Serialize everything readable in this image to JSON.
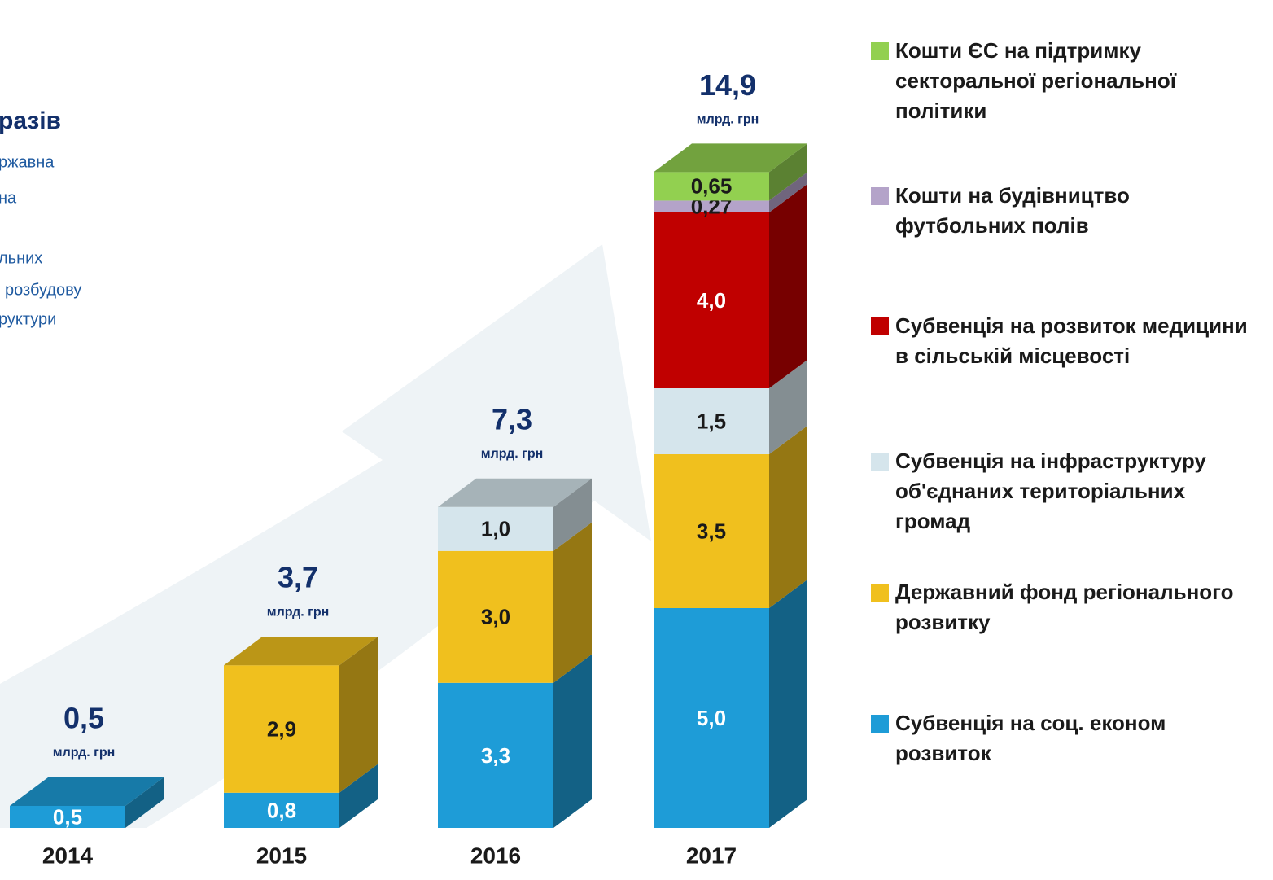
{
  "chart_data": {
    "type": "stacked-bar-3d",
    "categories": [
      "2014",
      "2015",
      "2016",
      "2017"
    ],
    "series": [
      {
        "name": "Субвенція на соц. економ розвиток",
        "color": "#1e9cd7",
        "values": [
          0.5,
          0.8,
          3.3,
          5.0
        ],
        "value_labels": [
          "0,5",
          "0,8",
          "3,3",
          "5,0"
        ]
      },
      {
        "name": "Державний фонд регіонального розвитку",
        "color": "#f0c01e",
        "values": [
          null,
          2.9,
          3.0,
          3.5
        ],
        "value_labels": [
          null,
          "2,9",
          "3,0",
          "3,5"
        ]
      },
      {
        "name": "Субвенція на інфраструктуру об'єднаних територіальних громад",
        "color": "#d5e5ec",
        "values": [
          null,
          null,
          1.0,
          1.5
        ],
        "value_labels": [
          null,
          null,
          "1,0",
          "1,5"
        ]
      },
      {
        "name": "Субвенція на розвиток медицини в сільській місцевості",
        "color": "#c00000",
        "values": [
          null,
          null,
          null,
          4.0
        ],
        "value_labels": [
          null,
          null,
          null,
          "4,0"
        ]
      },
      {
        "name": "Кошти на будівництво футбольних полів",
        "color": "#b4a3c9",
        "values": [
          null,
          null,
          null,
          0.27
        ],
        "value_labels": [
          null,
          null,
          null,
          "0,27"
        ]
      },
      {
        "name": "Кошти ЄС на підтримку секторальної регіональної політики",
        "color": "#92d050",
        "values": [
          null,
          null,
          null,
          0.65
        ],
        "value_labels": [
          null,
          null,
          null,
          "0,65"
        ]
      }
    ],
    "totals": [
      0.5,
      3.7,
      7.3,
      14.9
    ],
    "total_labels": [
      "0,5",
      "3,7",
      "7,3",
      "14,9"
    ],
    "unit": "млрд. грн",
    "annotations": [
      "разів",
      "ржавна",
      "на",
      "льних",
      "розбудову",
      "руктури"
    ]
  }
}
